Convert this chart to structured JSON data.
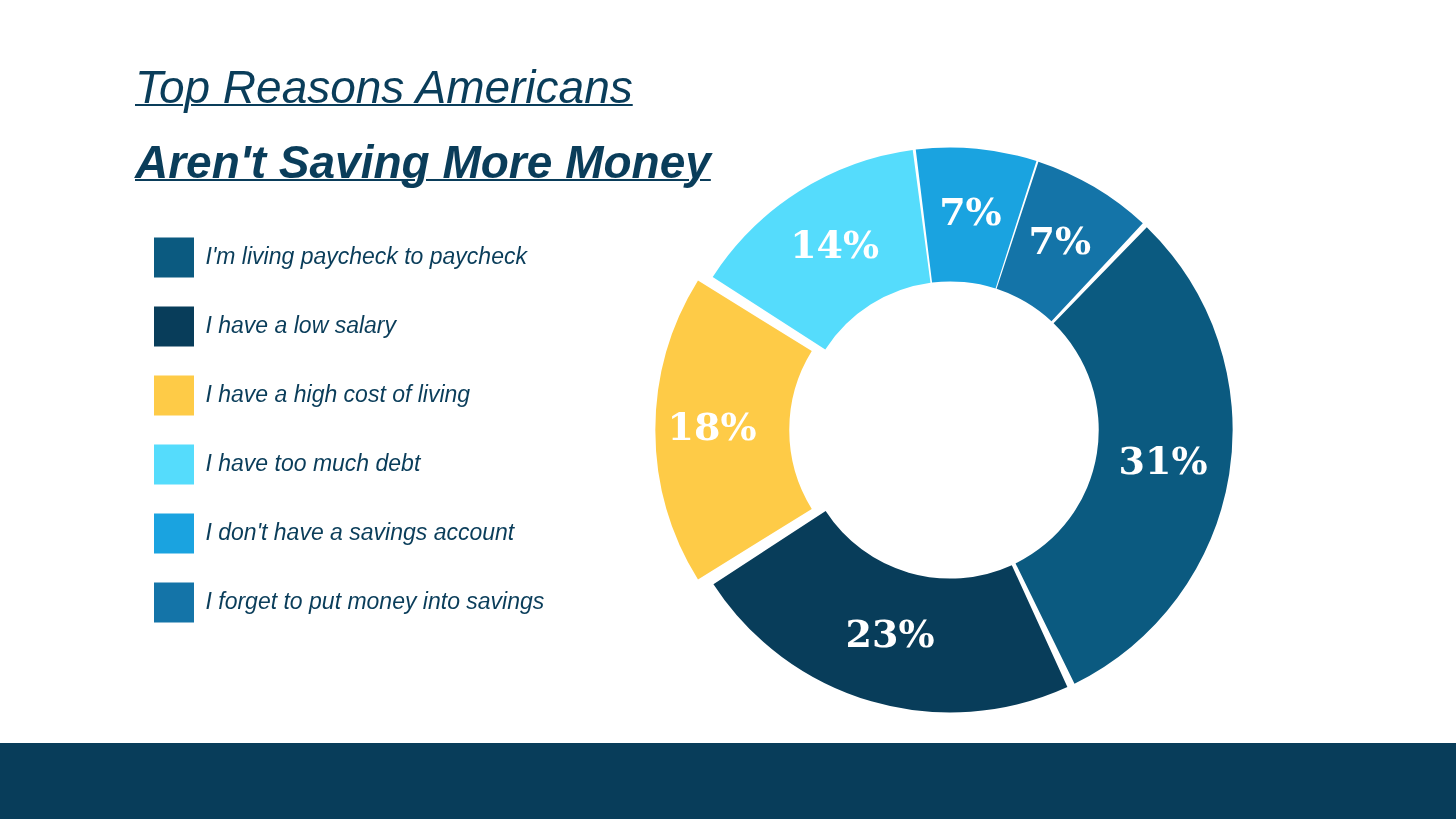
{
  "chart_data": {
    "type": "donut",
    "title": "Top Reasons Americans",
    "subtitle": "Aren't Saving More Money",
    "categories": [
      "I'm living paycheck to paycheck",
      "I have a low salary",
      "I have a high cost of living",
      "I have too much debt",
      "I don't have a savings account",
      "I forget to put money into savings"
    ],
    "values": [
      31,
      23,
      18,
      14,
      7,
      7
    ],
    "colors": [
      "#0b5a80",
      "#083d5a",
      "#fecb47",
      "#55dcfc",
      "#1aa3e0",
      "#1474a8"
    ],
    "value_labels": [
      "31%",
      "23%",
      "18%",
      "14%",
      "7%",
      "7%"
    ],
    "legend": "left"
  }
}
